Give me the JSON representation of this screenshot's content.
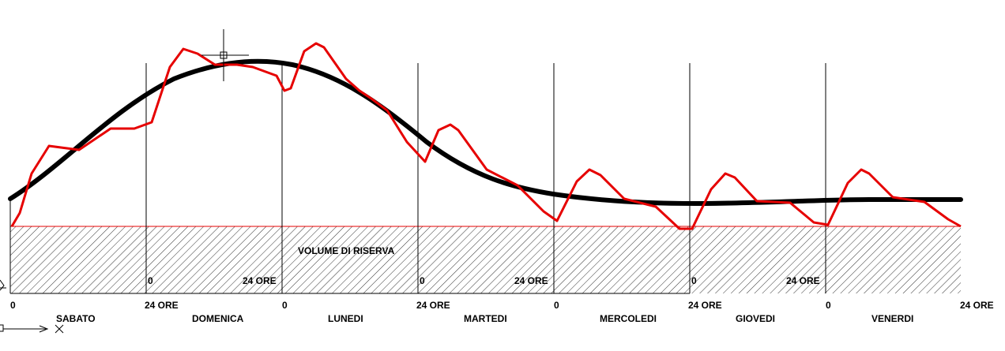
{
  "diagram": {
    "reserve_label": "VOLUME DI RISERVA",
    "days": [
      "SABATO",
      "DOMENICA",
      "LUNEDI",
      "MARTEDI",
      "MERCOLEDI",
      "GIOVEDI",
      "VENERDI"
    ],
    "bottom_axis": {
      "start_label": "0",
      "end_label": "24  ORE"
    },
    "inner_axis": {
      "start_label": "0",
      "end_label": "24  ORE"
    },
    "colors": {
      "demand_curve": "#e60000",
      "average_curve": "#000000",
      "hatch": "#000000",
      "reserve_line": "#e60000"
    },
    "icons": [
      "cad-crosshair-cursor-icon",
      "ucs-axis-icon"
    ]
  }
}
